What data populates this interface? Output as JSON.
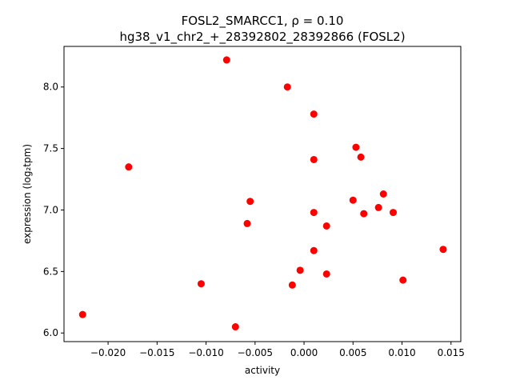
{
  "chart_data": {
    "type": "scatter",
    "title_line1": "FOSL2_SMARCC1, ρ = 0.10",
    "title_line2": "hg38_v1_chr2_+_28392802_28392866 (FOSL2)",
    "xlabel": "activity",
    "ylabel": "expression (log₂tpm)",
    "xlim": [
      -0.0245,
      0.016
    ],
    "ylim": [
      5.93,
      8.33
    ],
    "xticks": [
      {
        "value": -0.02,
        "label": "−0.020"
      },
      {
        "value": -0.015,
        "label": "−0.015"
      },
      {
        "value": -0.01,
        "label": "−0.010"
      },
      {
        "value": -0.005,
        "label": "−0.005"
      },
      {
        "value": 0.0,
        "label": "0.000"
      },
      {
        "value": 0.005,
        "label": "0.005"
      },
      {
        "value": 0.01,
        "label": "0.010"
      },
      {
        "value": 0.015,
        "label": "0.015"
      }
    ],
    "yticks": [
      {
        "value": 6.0,
        "label": "6.0"
      },
      {
        "value": 6.5,
        "label": "6.5"
      },
      {
        "value": 7.0,
        "label": "7.0"
      },
      {
        "value": 7.5,
        "label": "7.5"
      },
      {
        "value": 8.0,
        "label": "8.0"
      }
    ],
    "grid": false,
    "marker_color": "#ff0000",
    "points": [
      {
        "x": -0.0226,
        "y": 6.15
      },
      {
        "x": -0.0179,
        "y": 7.35
      },
      {
        "x": -0.0105,
        "y": 6.4
      },
      {
        "x": -0.0079,
        "y": 8.22
      },
      {
        "x": -0.007,
        "y": 6.05
      },
      {
        "x": -0.0058,
        "y": 6.89
      },
      {
        "x": -0.0055,
        "y": 7.07
      },
      {
        "x": -0.0017,
        "y": 8.0
      },
      {
        "x": -0.0012,
        "y": 6.39
      },
      {
        "x": -0.0004,
        "y": 6.51
      },
      {
        "x": 0.001,
        "y": 7.78
      },
      {
        "x": 0.001,
        "y": 7.41
      },
      {
        "x": 0.001,
        "y": 6.98
      },
      {
        "x": 0.001,
        "y": 6.67
      },
      {
        "x": 0.0023,
        "y": 6.87
      },
      {
        "x": 0.0023,
        "y": 6.48
      },
      {
        "x": 0.005,
        "y": 7.08
      },
      {
        "x": 0.0053,
        "y": 7.51
      },
      {
        "x": 0.0058,
        "y": 7.43
      },
      {
        "x": 0.0061,
        "y": 6.97
      },
      {
        "x": 0.0076,
        "y": 7.02
      },
      {
        "x": 0.0081,
        "y": 7.13
      },
      {
        "x": 0.0091,
        "y": 6.98
      },
      {
        "x": 0.0101,
        "y": 6.43
      },
      {
        "x": 0.0142,
        "y": 6.68
      }
    ]
  }
}
